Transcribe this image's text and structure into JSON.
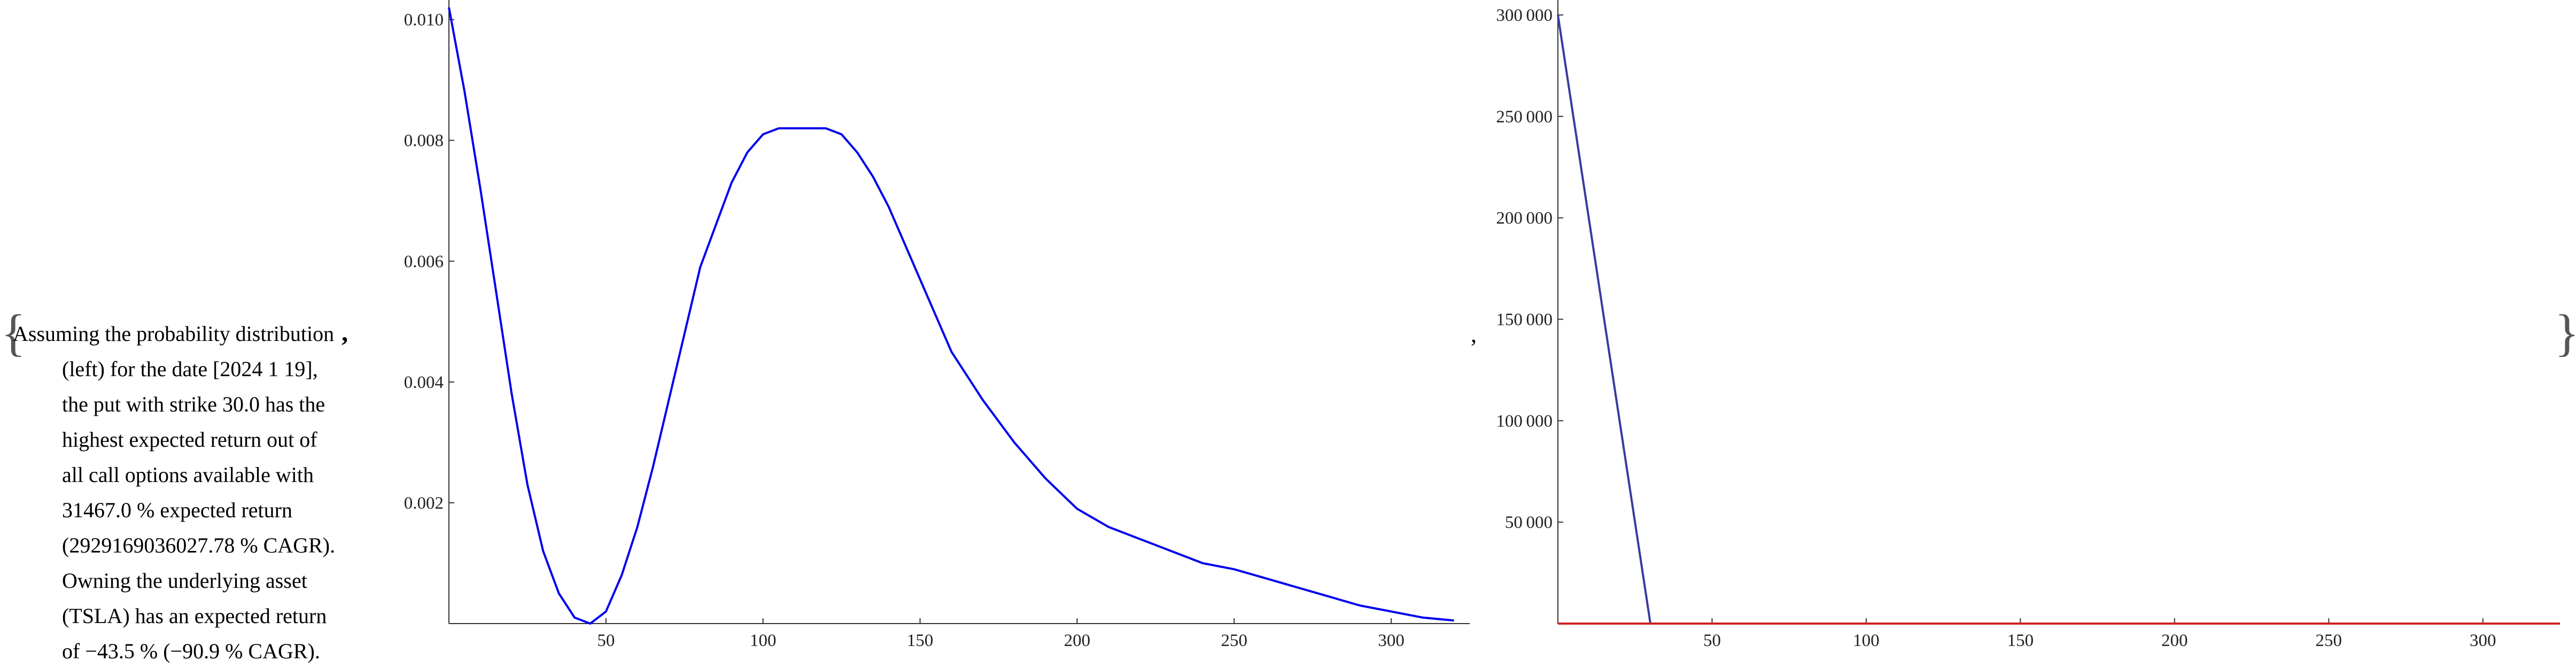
{
  "text": {
    "brace_open": "{",
    "brace_close": "}",
    "caption_lines": [
      "Assuming the probability distribution",
      "(left) for the date [2024 1 19],",
      "the put with strike 30.0 has the",
      "highest expected return out of",
      "all call options available with",
      "31467.0 % expected return",
      "(2929169036027.78 % CAGR).",
      "Owning the underlying asset",
      "(TSLA) has an expected return",
      "of −43.5 % (−90.9 % CAGR)."
    ],
    "caption_trailing_comma": ",",
    "separator_comma": ","
  },
  "chart_data": [
    {
      "type": "line",
      "title": "",
      "xlabel": "",
      "ylabel": "",
      "xlim": [
        0,
        325
      ],
      "ylim": [
        0,
        0.0102
      ],
      "x_ticks": [
        50,
        100,
        150,
        200,
        250,
        300
      ],
      "x_tick_labels": [
        "50",
        "100",
        "150",
        "200",
        "250",
        "300"
      ],
      "y_ticks": [
        0.002,
        0.004,
        0.006,
        0.008,
        0.01
      ],
      "y_tick_labels": [
        "0.002",
        "0.004",
        "0.006",
        "0.008",
        "0.010"
      ],
      "grid": false,
      "series": [
        {
          "color": "#0000ee",
          "x": [
            0,
            5,
            10,
            15,
            20,
            25,
            30,
            35,
            40,
            45,
            50,
            55,
            60,
            65,
            70,
            75,
            80,
            85,
            90,
            95,
            100,
            105,
            110,
            115,
            120,
            125,
            130,
            135,
            140,
            145,
            150,
            155,
            160,
            170,
            180,
            190,
            200,
            210,
            220,
            230,
            240,
            250,
            260,
            270,
            280,
            290,
            300,
            310,
            320
          ],
          "y": [
            0.0102,
            0.0088,
            0.0072,
            0.0055,
            0.0038,
            0.0023,
            0.0012,
            0.0005,
            0.0001,
            0.0,
            0.0002,
            0.0008,
            0.0016,
            0.0026,
            0.0037,
            0.0048,
            0.0059,
            0.0066,
            0.0073,
            0.0078,
            0.0081,
            0.0082,
            0.0082,
            0.0082,
            0.0082,
            0.0081,
            0.0078,
            0.0074,
            0.0069,
            0.0063,
            0.0057,
            0.0051,
            0.0045,
            0.0037,
            0.003,
            0.0024,
            0.0019,
            0.0016,
            0.0014,
            0.0012,
            0.001,
            0.0009,
            0.00075,
            0.0006,
            0.00045,
            0.0003,
            0.0002,
            0.0001,
            5e-05
          ]
        }
      ]
    },
    {
      "type": "line",
      "title": "",
      "xlabel": "",
      "ylabel": "",
      "xlim": [
        0,
        325
      ],
      "ylim": [
        0,
        300000
      ],
      "x_ticks": [
        50,
        100,
        150,
        200,
        250,
        300
      ],
      "x_tick_labels": [
        "50",
        "100",
        "150",
        "200",
        "250",
        "300"
      ],
      "y_ticks": [
        50000,
        100000,
        150000,
        200000,
        250000,
        300000
      ],
      "y_tick_labels": [
        "50 000",
        "100 000",
        "150 000",
        "200 000",
        "250 000",
        "300 000"
      ],
      "grid": false,
      "series": [
        {
          "color": "#3a3aa0",
          "x": [
            0,
            30,
            325
          ],
          "y": [
            300000,
            0,
            0
          ]
        },
        {
          "color": "#cc2222",
          "x": [
            0,
            325
          ],
          "y": [
            0,
            0
          ]
        }
      ]
    }
  ]
}
